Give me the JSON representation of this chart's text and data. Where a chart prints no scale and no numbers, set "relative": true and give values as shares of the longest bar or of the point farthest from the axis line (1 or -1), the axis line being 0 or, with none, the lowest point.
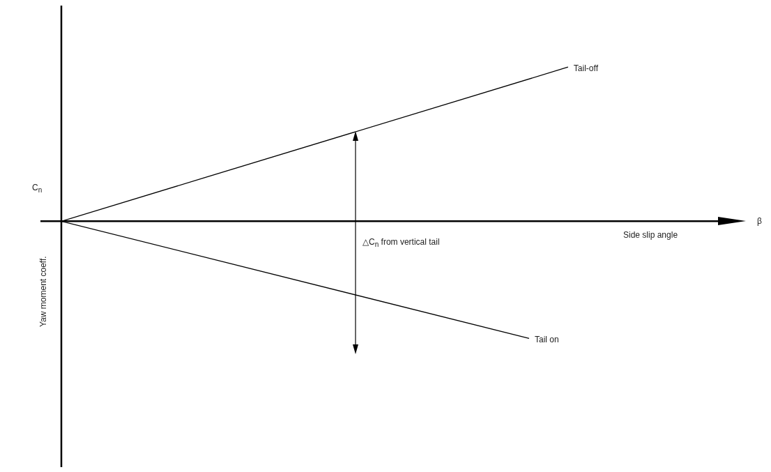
{
  "chart_data": {
    "type": "line",
    "relative": true,
    "xlabel": "Side slip angle",
    "ylabel": "Yaw moment coeff.",
    "categories": [
      null,
      null,
      null,
      null,
      null,
      null,
      null,
      null,
      null,
      null,
      null,
      null,
      null,
      null
    ],
    "series": [
      {
        "name": "Tail-off",
        "color": "#000000",
        "values": [
          0,
          null,
          null,
          null,
          null,
          null,
          null,
          null,
          null,
          null,
          null,
          null,
          null,
          1
        ]
      },
      {
        "name": "Tail on",
        "color": "#000000",
        "values": [
          0,
          null,
          null,
          null,
          null,
          null,
          null,
          null,
          null,
          null,
          null,
          null,
          -0.76,
          null
        ]
      }
    ],
    "annotations": [
      "β",
      "C$_{n}$",
      "△C$_{n}$ from vertical tail"
    ],
    "legend": false,
    "marker": "none",
    "line_style": "solid"
  }
}
